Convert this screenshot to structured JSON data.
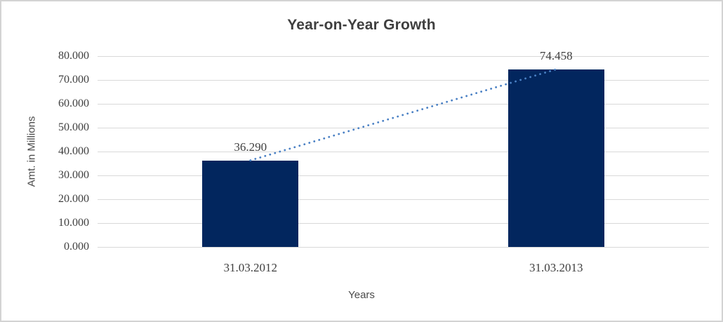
{
  "chart_data": {
    "type": "bar",
    "title": "Year-on-Year Growth",
    "xlabel": "Years",
    "ylabel": "Amt. in Millions",
    "categories": [
      "31.03.2012",
      "31.03.2013"
    ],
    "values": [
      36290,
      74458
    ],
    "value_labels": [
      "36.290",
      "74.458"
    ],
    "ylim": [
      0,
      80000
    ],
    "y_ticks": [
      {
        "value": 0,
        "label": "0.000"
      },
      {
        "value": 10000,
        "label": "10.000"
      },
      {
        "value": 20000,
        "label": "20.000"
      },
      {
        "value": 30000,
        "label": "30.000"
      },
      {
        "value": 40000,
        "label": "40.000"
      },
      {
        "value": 50000,
        "label": "50.000"
      },
      {
        "value": 60000,
        "label": "60.000"
      },
      {
        "value": 70000,
        "label": "70.000"
      },
      {
        "value": 80000,
        "label": "80.000"
      }
    ],
    "grid": "horizontal",
    "legend": "none",
    "bar_color": "#02265e",
    "trendline": {
      "style": "dotted",
      "color": "#4a80c4",
      "from_category": 0,
      "to_category": 1
    }
  },
  "styles": {
    "grid_color": "#d9d9d9",
    "text_color": "#3f3f3f",
    "frame_border_color": "#d3d3d3",
    "background": "#ffffff"
  }
}
